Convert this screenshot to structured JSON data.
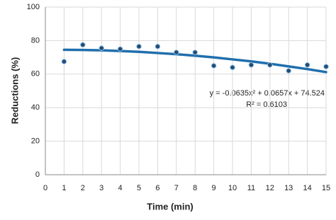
{
  "chart_data": {
    "type": "scatter",
    "x_label": "Time (min)",
    "y_label": "Reductions (%)",
    "x": [
      1,
      2,
      3,
      4,
      5,
      6,
      7,
      8,
      9,
      10,
      11,
      12,
      13,
      14,
      15
    ],
    "series": [
      {
        "color": "#1f4e79",
        "values": [
          67.5,
          77.5,
          75.5,
          75,
          76.5,
          76.5,
          73,
          73,
          65,
          64,
          65.5,
          65.5,
          62,
          65.5,
          64.5
        ]
      }
    ],
    "trendline": {
      "color": "#1f6fad",
      "values": [
        74.5,
        74.4,
        74.2,
        73.8,
        73.3,
        72.6,
        71.9,
        71.0,
        70.0,
        68.8,
        67.6,
        66.2,
        64.6,
        63.0,
        61.2
      ]
    },
    "annotations": [
      "y = -0.0635x² + 0.0657x + 74.524",
      "R² = 0.6103"
    ],
    "xlim": [
      0,
      15
    ],
    "xticks": [
      0,
      1,
      2,
      3,
      4,
      5,
      6,
      7,
      8,
      9,
      10,
      11,
      12,
      13,
      14,
      15
    ],
    "ylim": [
      0,
      100
    ],
    "yticks": [
      0,
      20,
      40,
      60,
      80,
      100
    ],
    "grid": true
  }
}
